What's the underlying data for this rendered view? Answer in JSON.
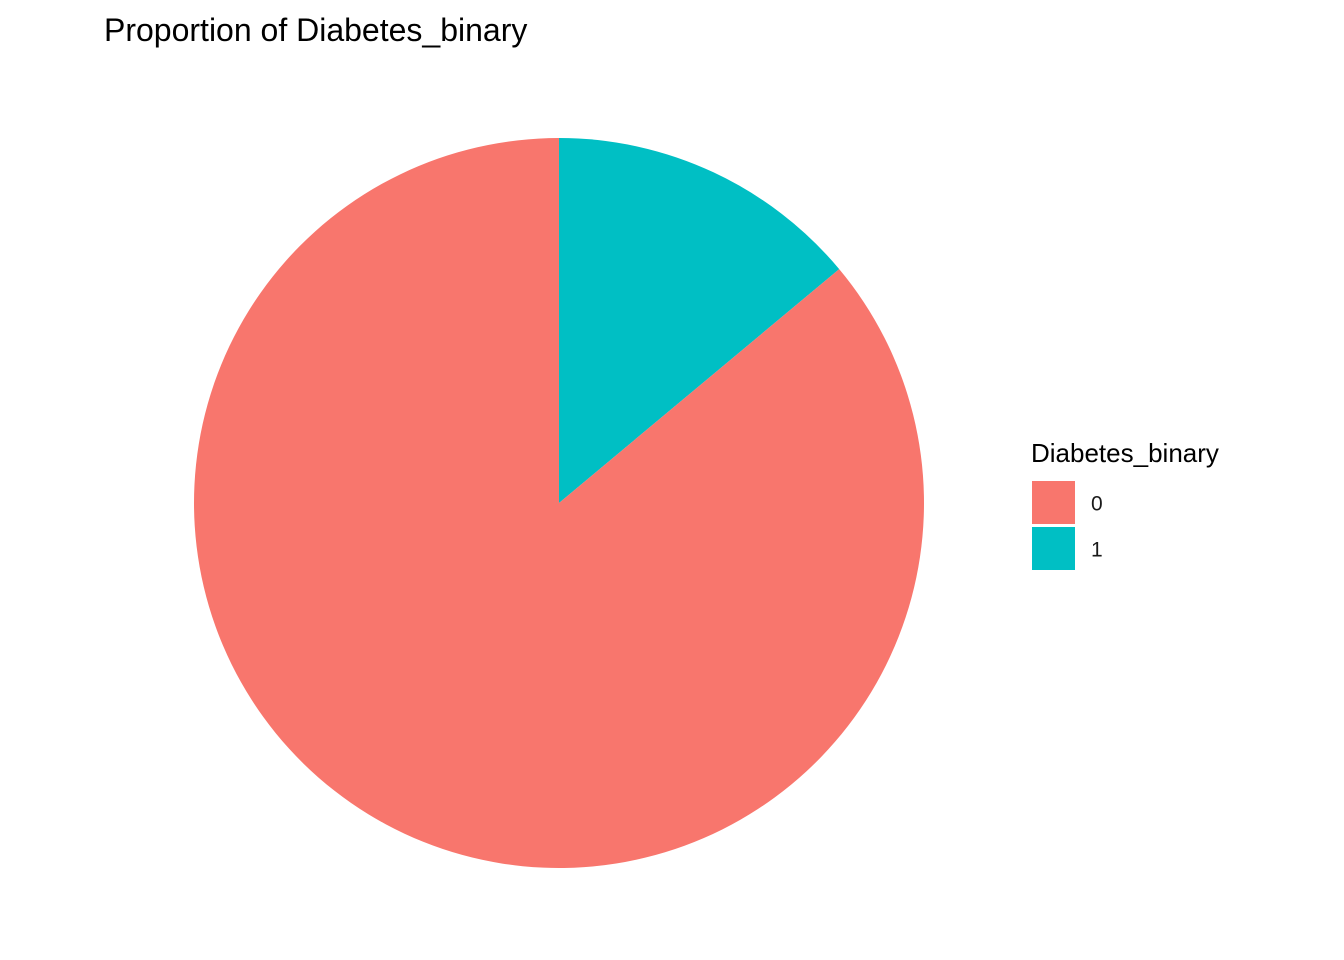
{
  "chart_data": {
    "type": "pie",
    "title": "Proportion of Diabetes_binary",
    "legend_title": "Diabetes_binary",
    "legend_position": "right",
    "start_angle": "12 o'clock",
    "direction": "counterclockwise",
    "slices": [
      {
        "label": "0",
        "value": 86.07,
        "color": "#F8766D"
      },
      {
        "label": "1",
        "value": 13.93,
        "color": "#00BFC4"
      }
    ]
  }
}
